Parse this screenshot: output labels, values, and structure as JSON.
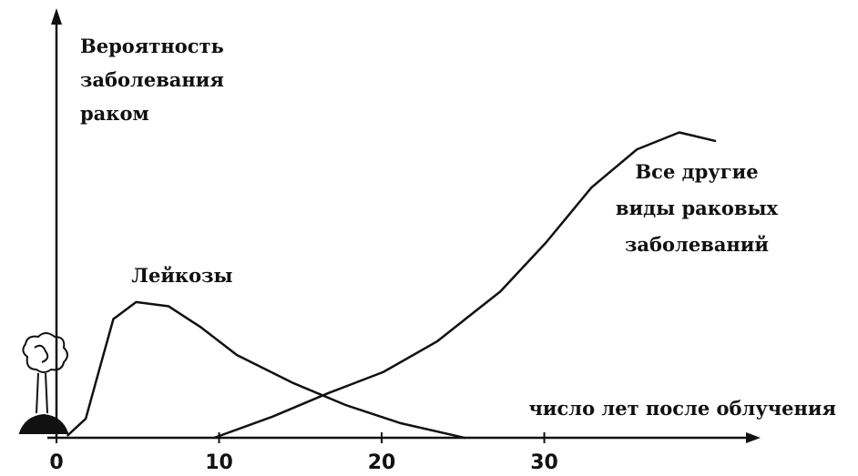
{
  "chart_data": {
    "type": "line",
    "y_label": [
      "Вероятность",
      "заболевания",
      "раком"
    ],
    "x_label": "число лет после облучения",
    "xlim": [
      0,
      43.3
    ],
    "ylim": [
      0,
      1
    ],
    "xticks": [
      0,
      10,
      20,
      30
    ],
    "series": [
      {
        "name": "Лейкозы",
        "color": "#111111",
        "x": [
          0.7,
          1.8,
          2.7,
          3.5,
          4.9,
          6.9,
          8.9,
          11.1,
          14.5,
          17.8,
          21.2,
          25.1
        ],
        "values": [
          0.006,
          0.045,
          0.17,
          0.28,
          0.32,
          0.31,
          0.26,
          0.195,
          0.13,
          0.077,
          0.034,
          0
        ]
      },
      {
        "name": [
          "Все другие",
          "виды раковых",
          "заболеваний"
        ],
        "color": "#111111",
        "x": [
          9.7,
          13.3,
          16.7,
          20.1,
          23.4,
          27.3,
          30.1,
          32.9,
          35.7,
          38.3,
          40.5
        ],
        "values": [
          0,
          0.05,
          0.105,
          0.155,
          0.227,
          0.345,
          0.46,
          0.59,
          0.68,
          0.72,
          0.7
        ]
      }
    ]
  }
}
